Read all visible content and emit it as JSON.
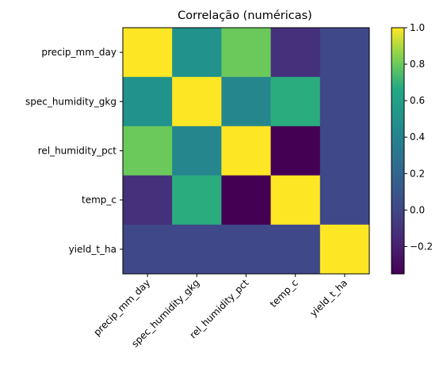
{
  "chart_data": {
    "type": "heatmap",
    "title": "Correlação (numéricas)",
    "xlabel": "",
    "ylabel": "",
    "row_labels": [
      "precip_mm_day",
      "spec_humidity_gkg",
      "rel_humidity_pct",
      "temp_c",
      "yield_t_ha"
    ],
    "col_labels": [
      "precip_mm_day",
      "spec_humidity_gkg",
      "rel_humidity_pct",
      "temp_c",
      "yield_t_ha"
    ],
    "values": [
      [
        1.0,
        0.5,
        0.8,
        -0.12,
        0.01
      ],
      [
        0.5,
        1.0,
        0.42,
        0.68,
        0.01
      ],
      [
        0.8,
        0.42,
        1.0,
        -0.35,
        0.01
      ],
      [
        -0.12,
        0.68,
        -0.35,
        1.0,
        0.01
      ],
      [
        0.01,
        0.01,
        0.01,
        0.01,
        1.0
      ]
    ],
    "colormap": "viridis",
    "vmin": -0.35,
    "vmax": 1.0,
    "colorbar_ticks": [
      "1.0",
      "0.8",
      "0.6",
      "0.4",
      "0.2",
      "0.0",
      "−0.2"
    ],
    "colorbar_tick_values": [
      1.0,
      0.8,
      0.6,
      0.4,
      0.2,
      0.0,
      -0.2
    ],
    "grid": false,
    "colorbar_position": "right"
  }
}
